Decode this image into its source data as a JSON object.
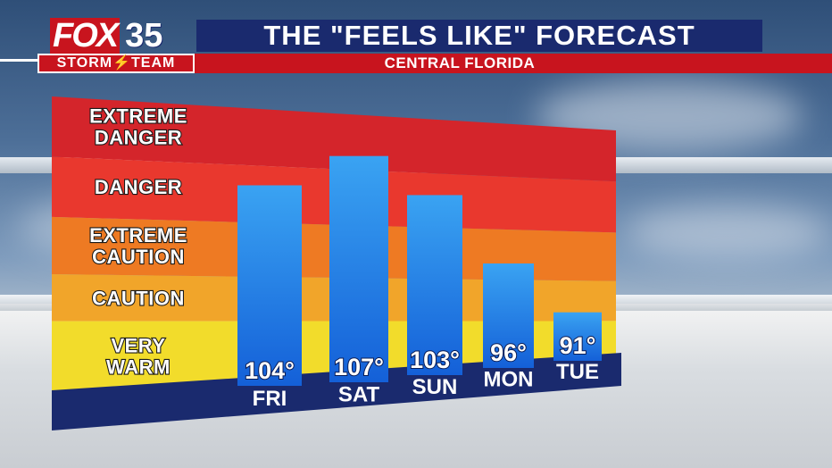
{
  "header": {
    "title": "THE \"FEELS LIKE\" FORECAST",
    "subtitle": "CENTRAL FLORIDA"
  },
  "logo": {
    "brand": "FOX",
    "number": "35",
    "team": "STORM⚡TEAM"
  },
  "colors": {
    "header_bg": "#1a2a6e",
    "subheader_bg": "#c8141e",
    "bar": "#1e7fe0",
    "base": "#1a2a6e"
  },
  "chart_data": {
    "type": "bar",
    "categories": [
      "FRI",
      "SAT",
      "SUN",
      "MON",
      "TUE"
    ],
    "values": [
      104,
      107,
      103,
      96,
      91
    ],
    "value_labels": [
      "104°",
      "107°",
      "103°",
      "96°",
      "91°"
    ],
    "zones": [
      {
        "label_lines": [
          "EXTREME",
          "DANGER"
        ],
        "color": "#d4252b"
      },
      {
        "label_lines": [
          "DANGER"
        ],
        "color": "#e9382e"
      },
      {
        "label_lines": [
          "EXTREME",
          "CAUTION"
        ],
        "color": "#ee7a23"
      },
      {
        "label_lines": [
          "CAUTION"
        ],
        "color": "#f1a52a"
      },
      {
        "label_lines": [
          "VERY",
          "WARM"
        ],
        "color": "#f2dc2b"
      }
    ],
    "ylim": [
      80,
      112
    ]
  }
}
